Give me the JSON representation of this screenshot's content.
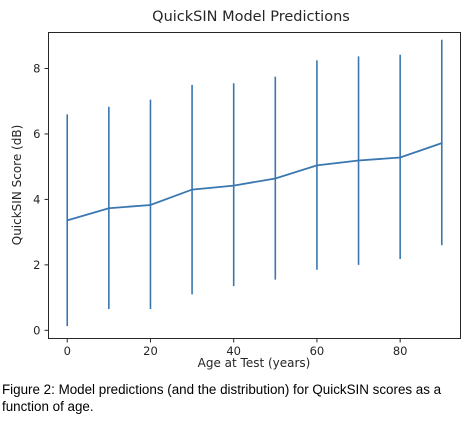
{
  "chart_data": {
    "type": "line",
    "title": "QuickSIN Model Predictions",
    "xlabel": "Age at Test (years)",
    "ylabel": "QuickSIN Score (dB)",
    "xlim": [
      -4.5,
      94.5
    ],
    "ylim": [
      -0.25,
      9.1
    ],
    "xticks": [
      0,
      20,
      40,
      60,
      80
    ],
    "yticks": [
      0,
      2,
      4,
      6,
      8
    ],
    "grid": false,
    "legend": "none",
    "series": [
      {
        "x": [
          0,
          10,
          20,
          30,
          40,
          50,
          60,
          70,
          80,
          90
        ],
        "y": [
          3.36,
          3.73,
          3.83,
          4.3,
          4.42,
          4.64,
          5.04,
          5.19,
          5.28,
          5.72
        ],
        "lower": [
          0.13,
          0.65,
          0.65,
          1.1,
          1.35,
          1.55,
          1.85,
          2.0,
          2.18,
          2.6
        ],
        "upper": [
          6.6,
          6.83,
          7.05,
          7.5,
          7.55,
          7.75,
          8.25,
          8.37,
          8.42,
          8.88
        ]
      }
    ]
  },
  "colors": {
    "line": "#3a77b0",
    "axis": "#262626",
    "text": "#262626"
  },
  "caption": "Figure 2: Model predictions (and the distribution) for QuickSIN scores as a function of age."
}
